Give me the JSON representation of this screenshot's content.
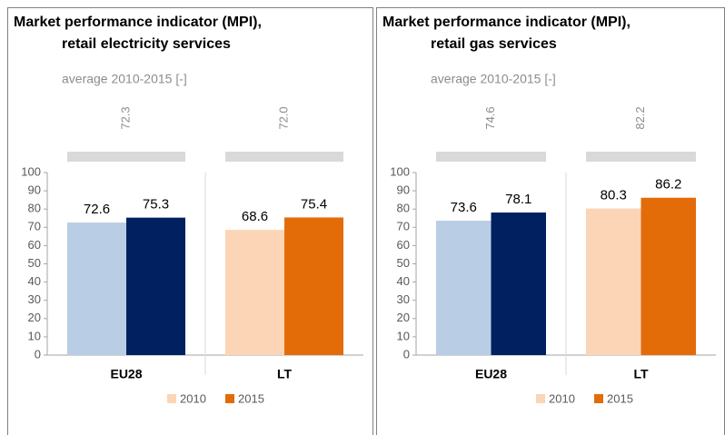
{
  "chart_data": [
    {
      "type": "bar",
      "title": [
        "Market performance indicator (MPI),",
        "retail electricity services"
      ],
      "subtitle": "average 2010-2015 [-]",
      "categories": [
        "EU28",
        "LT"
      ],
      "averages": {
        "values": [
          72.3,
          72.0
        ],
        "value_labels": [
          "72.3",
          "72.0"
        ]
      },
      "series": [
        {
          "name": "2010",
          "color": "#fbd5b5",
          "colors": [
            "#b9cde5",
            "#fbd5b5"
          ],
          "values": [
            72.6,
            68.6
          ]
        },
        {
          "name": "2015",
          "color": "#e36c09",
          "colors": [
            "#002060",
            "#e36c09"
          ],
          "values": [
            75.3,
            75.4
          ]
        }
      ],
      "ylim": [
        0,
        100
      ],
      "yticks": [
        0,
        10,
        20,
        30,
        40,
        50,
        60,
        70,
        80,
        90,
        100
      ],
      "grid": false,
      "legend": "bottom"
    },
    {
      "type": "bar",
      "title": [
        "Market performance indicator (MPI),",
        "retail gas services"
      ],
      "subtitle": "average 2010-2015 [-]",
      "categories": [
        "EU28",
        "LT"
      ],
      "averages": {
        "values": [
          74.6,
          82.2
        ],
        "value_labels": [
          "74.6",
          "82.2"
        ]
      },
      "series": [
        {
          "name": "2010",
          "color": "#fbd5b5",
          "colors": [
            "#b9cde5",
            "#fbd5b5"
          ],
          "values": [
            73.6,
            80.3
          ]
        },
        {
          "name": "2015",
          "color": "#e36c09",
          "colors": [
            "#002060",
            "#e36c09"
          ],
          "values": [
            78.1,
            86.2
          ]
        }
      ],
      "ylim": [
        0,
        100
      ],
      "yticks": [
        0,
        10,
        20,
        30,
        40,
        50,
        60,
        70,
        80,
        90,
        100
      ],
      "grid": false,
      "legend": "bottom"
    }
  ]
}
